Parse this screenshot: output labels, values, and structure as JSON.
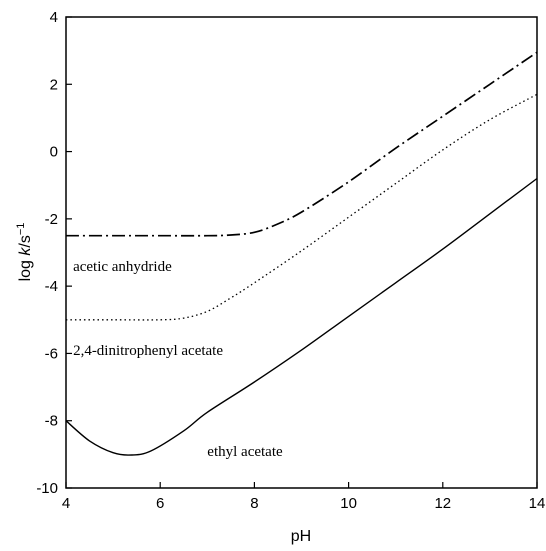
{
  "chart_data": {
    "type": "line",
    "xlabel": "pH",
    "ylabel": {
      "prefix": "log ",
      "italic": "k",
      "suffix": "/s",
      "sup": "−1"
    },
    "xlim": [
      4,
      14
    ],
    "ylim": [
      -10,
      4
    ],
    "xticks": [
      4,
      6,
      8,
      10,
      12,
      14
    ],
    "yticks": [
      4,
      2,
      0,
      -2,
      -4,
      -6,
      -8,
      -10
    ],
    "grid": false,
    "series": [
      {
        "name": "acetic anhydride",
        "style": "dash-dot",
        "x": [
          4,
          5,
          6,
          7,
          7.5,
          8,
          8.5,
          9,
          10,
          11,
          12,
          13,
          14
        ],
        "y": [
          -2.5,
          -2.5,
          -2.5,
          -2.5,
          -2.48,
          -2.4,
          -2.15,
          -1.8,
          -0.9,
          0.1,
          1.05,
          2.0,
          2.95
        ]
      },
      {
        "name": "2,4-dinitrophenyl acetate",
        "style": "dotted",
        "x": [
          4,
          5,
          6,
          6.5,
          7,
          7.5,
          8,
          9,
          10,
          11,
          12,
          13,
          14
        ],
        "y": [
          -5.0,
          -5.0,
          -5.0,
          -4.95,
          -4.75,
          -4.35,
          -3.9,
          -2.95,
          -1.95,
          -0.95,
          0.05,
          0.95,
          1.7
        ]
      },
      {
        "name": "ethyl acetate",
        "style": "solid",
        "x": [
          4,
          4.5,
          5,
          5.4,
          5.8,
          6.5,
          7,
          8,
          9,
          10,
          11,
          12,
          13,
          14
        ],
        "y": [
          -8.0,
          -8.6,
          -8.95,
          -9.02,
          -8.9,
          -8.3,
          -7.75,
          -6.85,
          -5.9,
          -4.9,
          -3.9,
          -2.9,
          -1.85,
          -0.8
        ]
      }
    ],
    "annotations": [
      {
        "text": "acetic anhydride",
        "x": 4.15,
        "y": -3.4
      },
      {
        "text": "2,4-dinitrophenyl acetate",
        "x": 4.15,
        "y": -5.9
      },
      {
        "text": "ethyl acetate",
        "x": 7.0,
        "y": -8.9
      }
    ]
  }
}
